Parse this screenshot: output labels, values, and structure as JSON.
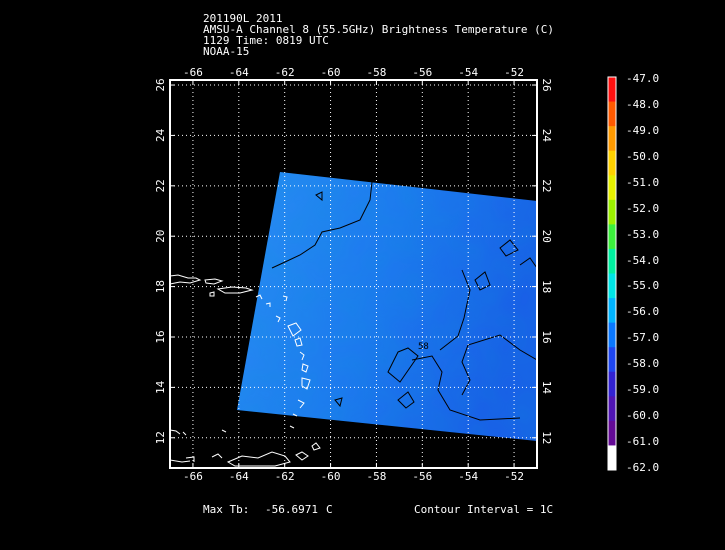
{
  "header": {
    "line1": "201190L 2011",
    "line2": "AMSU-A Channel 8 (55.5GHz) Brightness Temperature (C)",
    "line3": "1129 Time: 0819 UTC",
    "line4": "NOAA-15"
  },
  "map": {
    "lon_ticks": [
      "-66",
      "-64",
      "-62",
      "-60",
      "-58",
      "-56",
      "-54",
      "-52"
    ],
    "lat_ticks": [
      "12",
      "14",
      "16",
      "18",
      "20",
      "22",
      "24",
      "26"
    ],
    "lon_range": [
      -67,
      -51
    ],
    "lat_range": [
      10.8,
      26.2
    ],
    "contour_label": "58",
    "swath_color": "#1e78f0"
  },
  "colorbar": {
    "labels": [
      "-47.0",
      "-48.0",
      "-49.0",
      "-50.0",
      "-51.0",
      "-52.0",
      "-53.0",
      "-54.0",
      "-55.0",
      "-56.0",
      "-57.0",
      "-58.0",
      "-59.0",
      "-60.0",
      "-61.0",
      "-62.0"
    ],
    "colors": [
      "#ff1010",
      "#ff5a00",
      "#ff9a00",
      "#ffd200",
      "#e6f000",
      "#9cf000",
      "#3cf03c",
      "#00f0a0",
      "#00e6e6",
      "#00b4ff",
      "#0a78ff",
      "#1e46f0",
      "#3222d2",
      "#5014b4",
      "#640a96",
      "#ffffff"
    ]
  },
  "footer": {
    "max_tb_label": "Max Tb:",
    "max_tb_value": "-56.6971",
    "max_tb_unit": "C",
    "contour_interval": "Contour Interval = 1C"
  }
}
